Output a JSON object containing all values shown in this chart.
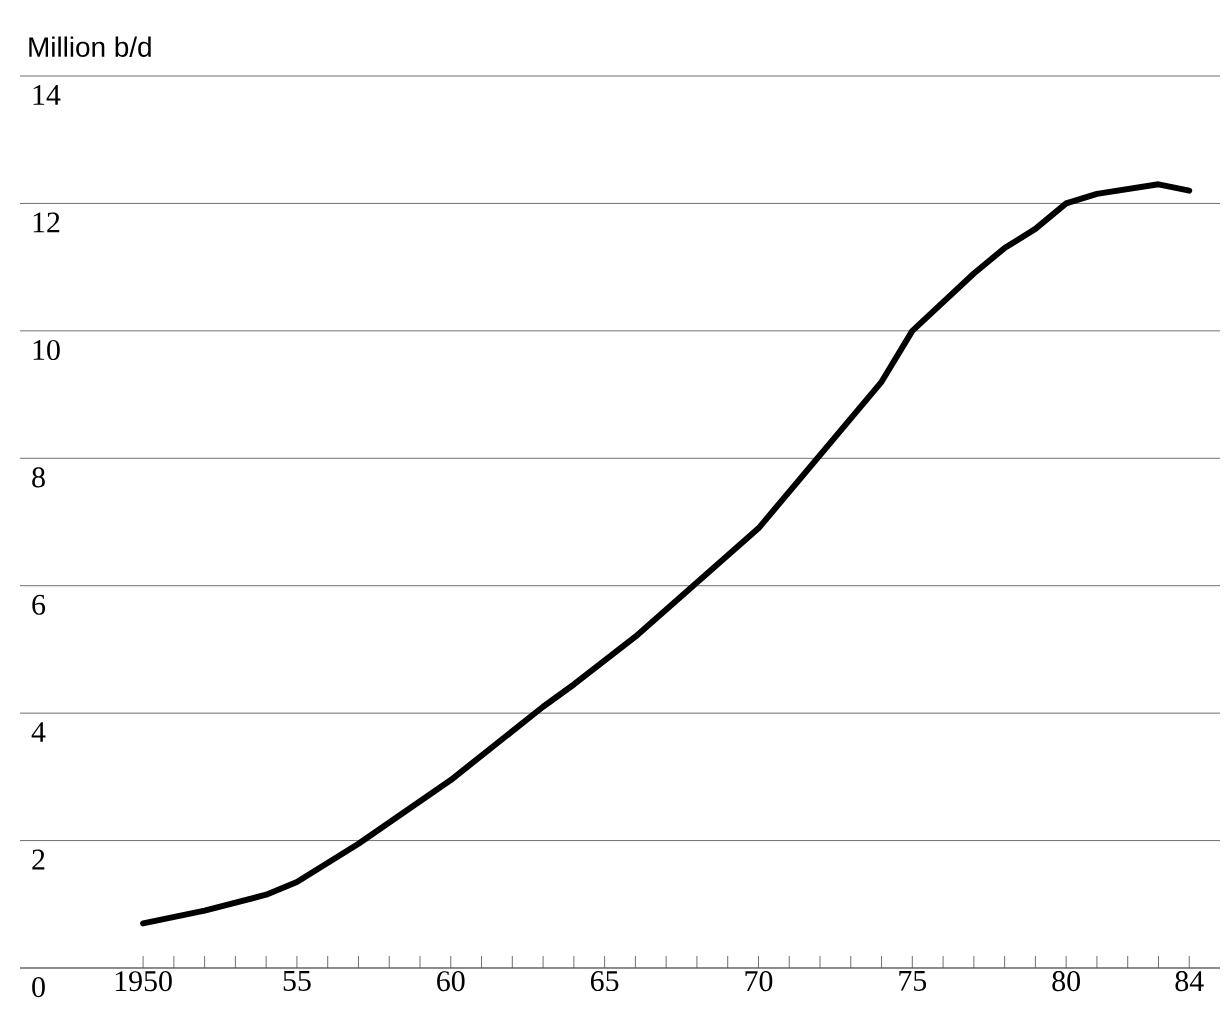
{
  "chart_data": {
    "type": "line",
    "ylabel": "Million b/d",
    "x": [
      1950,
      1952,
      1954,
      1955,
      1957,
      1960,
      1963,
      1964,
      1966,
      1968,
      1970,
      1972,
      1974,
      1975,
      1977,
      1978,
      1979,
      1980,
      1981,
      1983,
      1984
    ],
    "series": [
      {
        "color": "#000000",
        "values": [
          0.7,
          0.9,
          1.15,
          1.35,
          1.95,
          2.95,
          4.1,
          4.45,
          5.2,
          6.05,
          6.9,
          8.05,
          9.2,
          10.0,
          10.9,
          11.3,
          11.6,
          12.0,
          12.15,
          12.3,
          12.2
        ]
      }
    ],
    "xlim": [
      1946,
      1985
    ],
    "xticks": [
      {
        "value": 1950,
        "label": "1950"
      },
      {
        "value": 1951,
        "label": null
      },
      {
        "value": 1952,
        "label": null
      },
      {
        "value": 1953,
        "label": null
      },
      {
        "value": 1954,
        "label": null
      },
      {
        "value": 1955,
        "label": "55"
      },
      {
        "value": 1956,
        "label": null
      },
      {
        "value": 1957,
        "label": null
      },
      {
        "value": 1958,
        "label": null
      },
      {
        "value": 1959,
        "label": null
      },
      {
        "value": 1960,
        "label": "60"
      },
      {
        "value": 1961,
        "label": null
      },
      {
        "value": 1962,
        "label": null
      },
      {
        "value": 1963,
        "label": null
      },
      {
        "value": 1964,
        "label": null
      },
      {
        "value": 1965,
        "label": "65"
      },
      {
        "value": 1966,
        "label": null
      },
      {
        "value": 1967,
        "label": null
      },
      {
        "value": 1968,
        "label": null
      },
      {
        "value": 1969,
        "label": null
      },
      {
        "value": 1970,
        "label": "70"
      },
      {
        "value": 1971,
        "label": null
      },
      {
        "value": 1972,
        "label": null
      },
      {
        "value": 1973,
        "label": null
      },
      {
        "value": 1974,
        "label": null
      },
      {
        "value": 1975,
        "label": "75"
      },
      {
        "value": 1976,
        "label": null
      },
      {
        "value": 1977,
        "label": null
      },
      {
        "value": 1978,
        "label": null
      },
      {
        "value": 1979,
        "label": null
      },
      {
        "value": 1980,
        "label": "80"
      },
      {
        "value": 1981,
        "label": null
      },
      {
        "value": 1982,
        "label": null
      },
      {
        "value": 1983,
        "label": null
      },
      {
        "value": 1984,
        "label": "84"
      }
    ],
    "ylim": [
      0,
      14
    ],
    "yticks": [
      0,
      2,
      4,
      6,
      8,
      10,
      12,
      14
    ],
    "grid": "y",
    "marker": "none",
    "line_style": "solid"
  }
}
